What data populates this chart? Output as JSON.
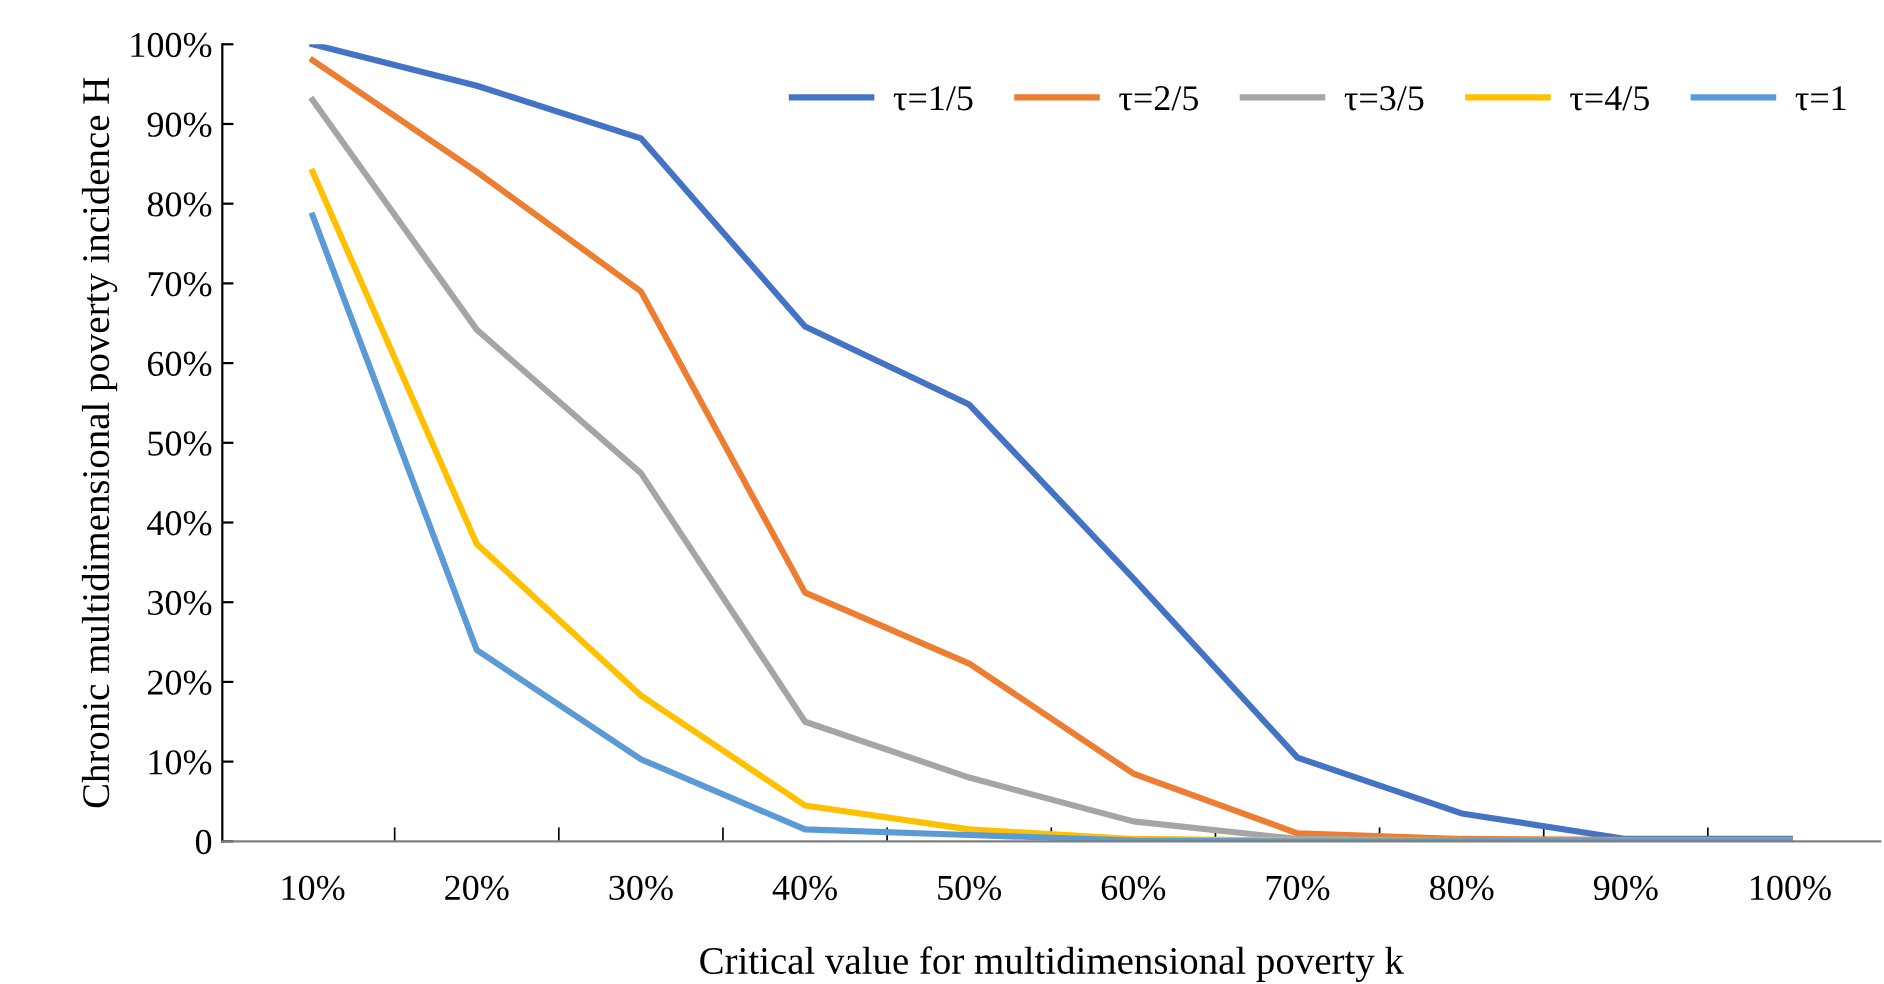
{
  "chart_data": {
    "type": "line",
    "xlabel": "Critical value for multidimensional poverty k",
    "ylabel": "Chronic multidimensional poverty incidence H",
    "categories": [
      "10%",
      "20%",
      "30%",
      "40%",
      "50%",
      "60%",
      "70%",
      "80%",
      "90%",
      "100%"
    ],
    "series": [
      {
        "name": "τ=1/5",
        "color": "#4472c4",
        "values": [
          100,
          94.8,
          88.2,
          64.6,
          54.8,
          33,
          10.5,
          3.5,
          0.3,
          0.3
        ]
      },
      {
        "name": "τ=2/5",
        "color": "#ed7d31",
        "values": [
          98,
          84,
          69,
          31.2,
          22.3,
          8.5,
          1,
          0.3,
          0.2,
          0.2
        ]
      },
      {
        "name": "τ=3/5",
        "color": "#a5a5a5",
        "values": [
          93,
          64.2,
          46.2,
          15,
          8,
          2.5,
          0.3,
          0.1,
          0.1,
          0.1
        ]
      },
      {
        "name": "τ=4/5",
        "color": "#ffc000",
        "values": [
          84,
          37.3,
          18.3,
          4.5,
          1.5,
          0.3,
          0.1,
          0,
          null,
          null
        ]
      },
      {
        "name": "τ=1",
        "color": "#5b9bd5",
        "values": [
          78.5,
          24,
          10.3,
          1.5,
          0.8,
          0.1,
          0,
          0,
          0,
          0
        ]
      }
    ],
    "ylim": [
      0,
      100
    ],
    "yticks": [
      {
        "value": 0,
        "label": "0"
      },
      {
        "value": 10,
        "label": "10%"
      },
      {
        "value": 20,
        "label": "20%"
      },
      {
        "value": 30,
        "label": "30%"
      },
      {
        "value": 40,
        "label": "40%"
      },
      {
        "value": 50,
        "label": "50%"
      },
      {
        "value": 60,
        "label": "60%"
      },
      {
        "value": 70,
        "label": "70%"
      },
      {
        "value": 80,
        "label": "80%"
      },
      {
        "value": 90,
        "label": "90%"
      },
      {
        "value": 100,
        "label": "100%"
      }
    ],
    "grid": false,
    "legend": "top right",
    "marker": "none",
    "line_style": "solid"
  }
}
